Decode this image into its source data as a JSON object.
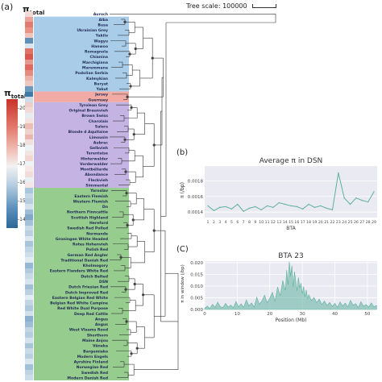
{
  "panel_a": {
    "label": "(a)",
    "pi_header": "π",
    "pi_header_sub": "total",
    "legend_title": "π",
    "legend_title_sub": "total",
    "legend_ticks": [
      "20",
      "19",
      "18",
      "17",
      "16",
      "15",
      "14"
    ],
    "tree_scale_label": "Tree scale: 100000",
    "clades": [
      {
        "name": "clade-blue",
        "color": "#a9cde9"
      },
      {
        "name": "clade-red",
        "color": "#f1aaa4"
      },
      {
        "name": "clade-purple",
        "color": "#c5b4e3"
      },
      {
        "name": "clade-green",
        "color": "#96cc8e"
      }
    ],
    "taxa": [
      {
        "label": "Auroch",
        "clade": -1,
        "heat": "#f0d9d6"
      },
      {
        "label": "Alba",
        "clade": 0,
        "heat": "#e8a49a"
      },
      {
        "label": "Busa",
        "clade": 0,
        "heat": "#e27b6f"
      },
      {
        "label": "Ukrainian Grey",
        "clade": 0,
        "heat": "#e99385"
      },
      {
        "label": "Yakilo",
        "clade": 0,
        "heat": "#efc2bb"
      },
      {
        "label": "Wagyu",
        "clade": 0,
        "heat": "#5f90b8"
      },
      {
        "label": "Hanwoo",
        "clade": 0,
        "heat": "#d8e4ee"
      },
      {
        "label": "Romagnola",
        "clade": 0,
        "heat": "#e07268"
      },
      {
        "label": "Chianina",
        "clade": 0,
        "heat": "#d9574c"
      },
      {
        "label": "Marchigiana",
        "clade": 0,
        "heat": "#e7998d"
      },
      {
        "label": "Maremmana",
        "clade": 0,
        "heat": "#df6b60"
      },
      {
        "label": "Podolian Serbia",
        "clade": 0,
        "heat": "#e58a7e"
      },
      {
        "label": "Kalmykian",
        "clade": 0,
        "heat": "#ebb2a9"
      },
      {
        "label": "Buryat",
        "clade": 0,
        "heat": "#eec7c0"
      },
      {
        "label": "Yakut",
        "clade": 0,
        "heat": "#6d9bc0"
      },
      {
        "label": "Jersey",
        "clade": 1,
        "heat": "#3e7aa8"
      },
      {
        "label": "Guernsey",
        "clade": 1,
        "heat": "#cfdde9"
      },
      {
        "label": "Tyrolean Grey",
        "clade": 2,
        "heat": "#efcdc7"
      },
      {
        "label": "Original Braunvieh",
        "clade": 2,
        "heat": "#f2dbd7"
      },
      {
        "label": "Brown Swiss",
        "clade": 2,
        "heat": "#e4ecf2"
      },
      {
        "label": "Charolais",
        "clade": 2,
        "heat": "#f3e2de"
      },
      {
        "label": "Salers",
        "clade": 2,
        "heat": "#ecbdb5"
      },
      {
        "label": "Blonde d Aquitaine",
        "clade": 2,
        "heat": "#f0d2cd"
      },
      {
        "label": "Limousin",
        "clade": 2,
        "heat": "#eab5ad"
      },
      {
        "label": "Aubrac",
        "clade": 2,
        "heat": "#f3dfdb"
      },
      {
        "label": "Gelbvieh",
        "clade": 2,
        "heat": "#ecf2f6"
      },
      {
        "label": "Tarentaise",
        "clade": 2,
        "heat": "#f4e4e1"
      },
      {
        "label": "Hinterwalder",
        "clade": 2,
        "heat": "#f1d6d1"
      },
      {
        "label": "Vorderwalder",
        "clade": 2,
        "heat": "#eef3f7"
      },
      {
        "label": "Montbéliarde",
        "clade": 2,
        "heat": "#f5e8e5"
      },
      {
        "label": "Abondance",
        "clade": 2,
        "heat": "#f2dcd8"
      },
      {
        "label": "Fleckvieh",
        "clade": 2,
        "heat": "#e9f0f5"
      },
      {
        "label": "Simmental",
        "clade": 2,
        "heat": "#f4e6e3"
      },
      {
        "label": "Yaroslav",
        "clade": 3,
        "heat": "#aac6dc"
      },
      {
        "label": "Eastern Flemish",
        "clade": 3,
        "heat": "#c4d7e6"
      },
      {
        "label": "Western Flemish",
        "clade": 3,
        "heat": "#b6cee1"
      },
      {
        "label": "Dn",
        "clade": 3,
        "heat": "#d3e1ec"
      },
      {
        "label": "Northern Finncattle",
        "clade": 3,
        "heat": "#9dbcd6"
      },
      {
        "label": "Scottish Highland",
        "clade": 3,
        "heat": "#7fa8c9"
      },
      {
        "label": "Hereford",
        "clade": 3,
        "heat": "#a3c1d9"
      },
      {
        "label": "Swedish Red Polled",
        "clade": 3,
        "heat": "#c9dbe8"
      },
      {
        "label": "Normande",
        "clade": 3,
        "heat": "#b9d0e2"
      },
      {
        "label": "Groningen White Headed",
        "clade": 3,
        "heat": "#dce7f0"
      },
      {
        "label": "Rotes Hohenvieh",
        "clade": 3,
        "heat": "#a8c4db"
      },
      {
        "label": "Polish Red",
        "clade": 3,
        "heat": "#bfd4e4"
      },
      {
        "label": "German Red Angler",
        "clade": 3,
        "heat": "#cddeea"
      },
      {
        "label": "Traditional Danish Red",
        "clade": 3,
        "heat": "#e0eaf2"
      },
      {
        "label": "Kholmogory",
        "clade": 3,
        "heat": "#95b7d3"
      },
      {
        "label": "Eastern Flanders White Red",
        "clade": 3,
        "heat": "#b1cadf"
      },
      {
        "label": "Dutch Belted",
        "clade": 3,
        "heat": "#c7d9e7"
      },
      {
        "label": "DSN",
        "clade": 3,
        "heat": "#d7e4ee"
      },
      {
        "label": "Dutch Friesian Red",
        "clade": 3,
        "heat": "#a0bed8"
      },
      {
        "label": "Dutch Improved Red",
        "clade": 3,
        "heat": "#bbd1e3"
      },
      {
        "label": "Eastern Belgian Red White",
        "clade": 3,
        "heat": "#e3ecf3"
      },
      {
        "label": "Belgian Red White Campine",
        "clade": 3,
        "heat": "#c1d5e5"
      },
      {
        "label": "Red White Dual Purpose",
        "clade": 3,
        "heat": "#aec8de"
      },
      {
        "label": "Deep Red Cattle",
        "clade": 3,
        "heat": "#d1e0eb"
      },
      {
        "label": "Angus",
        "clade": 3,
        "heat": "#8bb0cf"
      },
      {
        "label": "Angus",
        "clade": 3,
        "heat": "#9ebdd6"
      },
      {
        "label": "West Vlaams Rood",
        "clade": 3,
        "heat": "#c3d6e5"
      },
      {
        "label": "Shorthorn",
        "clade": 3,
        "heat": "#b4cce0"
      },
      {
        "label": "Maine Anjou",
        "clade": 3,
        "heat": "#d5e2ed"
      },
      {
        "label": "Vâneka",
        "clade": 3,
        "heat": "#a6c3da"
      },
      {
        "label": "Bargemiako",
        "clade": 3,
        "heat": "#c8dae7"
      },
      {
        "label": "Modern Engels",
        "clade": 3,
        "heat": "#b8cfe1"
      },
      {
        "label": "Ayrshire Finland",
        "clade": 3,
        "heat": "#dae6ef"
      },
      {
        "label": "Norwegian Red",
        "clade": 3,
        "heat": "#a2c0d8"
      },
      {
        "label": "Swedish Red",
        "clade": 3,
        "heat": "#bed3e4"
      },
      {
        "label": "Modern Danish Red",
        "clade": 3,
        "heat": "#ccdde9"
      }
    ]
  },
  "chart_data": [
    {
      "type": "line",
      "panel_label": "(b)",
      "title": "Average π in DSN",
      "xlabel": "BTA",
      "ylabel": "π (/bp)",
      "x": [
        1,
        2,
        3,
        4,
        5,
        6,
        7,
        8,
        9,
        10,
        11,
        12,
        13,
        14,
        15,
        16,
        17,
        18,
        19,
        20,
        21,
        22,
        23,
        24,
        25,
        26,
        27,
        28,
        29
      ],
      "xticks": [
        "1",
        "2",
        "3",
        "4",
        "5",
        "6",
        "7",
        "8",
        "9",
        "10",
        "11",
        "12",
        "13",
        "14",
        "15",
        "16",
        "17",
        "18",
        "19",
        "20",
        "21",
        "22",
        "23",
        "24",
        "25",
        "26",
        "27",
        "28",
        "29"
      ],
      "values": [
        0.00148,
        0.00142,
        0.00146,
        0.00147,
        0.00144,
        0.0015,
        0.00141,
        0.00145,
        0.00147,
        0.00143,
        0.00148,
        0.00146,
        0.00152,
        0.0015,
        0.00148,
        0.00147,
        0.00144,
        0.0015,
        0.00146,
        0.00148,
        0.00145,
        0.00143,
        0.0019,
        0.00158,
        0.0015,
        0.00158,
        0.00155,
        0.00153,
        0.00166
      ],
      "yticks": [
        "0.0014",
        "0.0016",
        "0.0018",
        "0.0020"
      ],
      "ylim": [
        0.00133,
        0.00203
      ],
      "color": "#5fb0a0",
      "grid": true
    },
    {
      "type": "area",
      "panel_label": "(C)",
      "title": "BTA 23",
      "xlabel": "Position (Mb)",
      "ylabel": "π in window (/bp)",
      "xticks": [
        "0",
        "10",
        "20",
        "30",
        "40",
        "50"
      ],
      "xlim": [
        0,
        53
      ],
      "yticks": [
        "0.000",
        "0.005",
        "0.010",
        "0.015",
        "0.020"
      ],
      "ylim": [
        0,
        0.022
      ],
      "color": "#5fb0a0",
      "grid": true,
      "series": [
        {
          "x": [
            0,
            0.8,
            1.6,
            2.4,
            3.2,
            4,
            4.8,
            5.6,
            6.4,
            7.2,
            8,
            8.8,
            9.6,
            10.4,
            11.2,
            12,
            12.8,
            13.6,
            14.4,
            15.2,
            16,
            16.8,
            17.6,
            18.4,
            19.2,
            20,
            20.8,
            21.6,
            22.4,
            23.2,
            24,
            24.8,
            25.2,
            25.6,
            26,
            26.4,
            26.8,
            27.2,
            27.6,
            28,
            28.4,
            28.8,
            29.2,
            29.6,
            30,
            30.4,
            30.8,
            31.2,
            31.6,
            32,
            32.8,
            33.6,
            34.4,
            35.2,
            36,
            36.8,
            37.6,
            38.4,
            39.2,
            40,
            40.8,
            41.6,
            42.4,
            43.2,
            44,
            44.8,
            45.6,
            46.4,
            47.2,
            48,
            48.8,
            49.6,
            50.4,
            51.2,
            52,
            52.8
          ],
          "values": [
            0.0006,
            0.0014,
            0.0004,
            0.0022,
            0.0009,
            0.0031,
            0.0012,
            0.0008,
            0.0026,
            0.001,
            0.0019,
            0.0007,
            0.0034,
            0.0011,
            0.0024,
            0.0009,
            0.0041,
            0.0015,
            0.0028,
            0.001,
            0.0052,
            0.0022,
            0.0037,
            0.0061,
            0.0029,
            0.0048,
            0.0073,
            0.0035,
            0.0096,
            0.0058,
            0.0124,
            0.0081,
            0.0168,
            0.0104,
            0.0203,
            0.0142,
            0.0187,
            0.0095,
            0.0161,
            0.0118,
            0.0079,
            0.0136,
            0.0092,
            0.0112,
            0.0067,
            0.0098,
            0.0054,
            0.0083,
            0.0046,
            0.0062,
            0.0038,
            0.0051,
            0.0029,
            0.0044,
            0.0021,
            0.0036,
            0.0017,
            0.003,
            0.0013,
            0.0026,
            0.0009,
            0.0032,
            0.0015,
            0.0027,
            0.0011,
            0.0039,
            0.0018,
            0.0025,
            0.0008,
            0.0033,
            0.0014,
            0.0021,
            0.001,
            0.0028,
            0.0012,
            0.0017
          ]
        }
      ]
    }
  ]
}
